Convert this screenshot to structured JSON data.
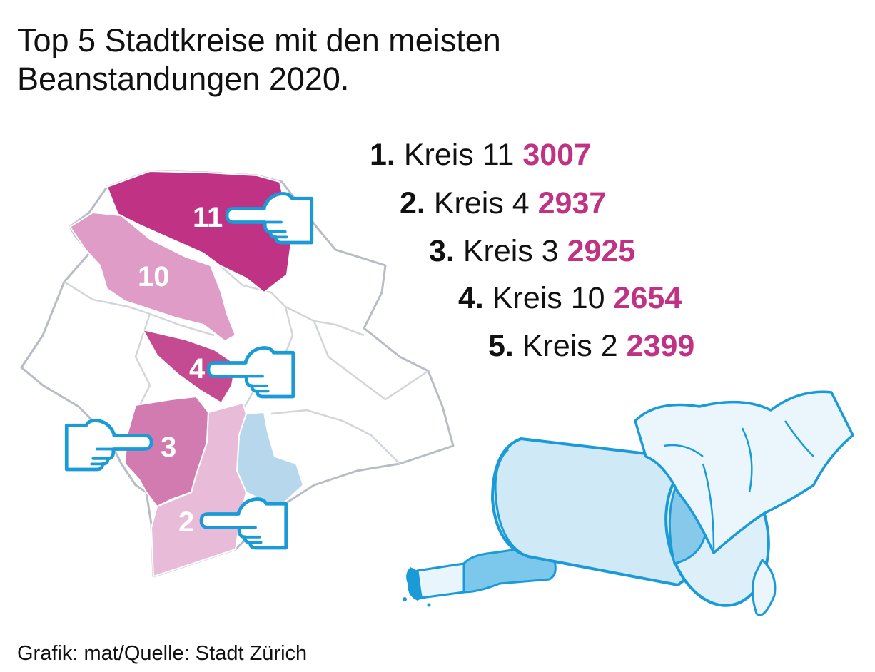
{
  "title": "Top 5 Stadtkreise mit den meisten Beanstandungen 2020.",
  "ranking": [
    {
      "rank": "1.",
      "label": "Kreis 11",
      "value": "3007"
    },
    {
      "rank": "2.",
      "label": "Kreis 4",
      "value": "2937"
    },
    {
      "rank": "3.",
      "label": "Kreis 3",
      "value": "2925"
    },
    {
      "rank": "4.",
      "label": "Kreis 10",
      "value": "2654"
    },
    {
      "rank": "5.",
      "label": "Kreis 2",
      "value": "2399"
    }
  ],
  "map_labels": {
    "k11": "11",
    "k10": "10",
    "k4": "4",
    "k3": "3",
    "k2": "2"
  },
  "source": "Grafik: mat/Quelle: Stadt Zürich",
  "colors": {
    "accent": "#c03384",
    "kreis11": "#c03384",
    "kreis10": "#de9cc6",
    "kreis4": "#c44a91",
    "kreis3": "#d27bb0",
    "kreis2": "#e8bcd8",
    "kreis1": "#b7d8ec",
    "outline": "#1a9bd7"
  },
  "icons": [
    "pointing-hand-icon",
    "trash-can-icon",
    "bottle-icon"
  ]
}
